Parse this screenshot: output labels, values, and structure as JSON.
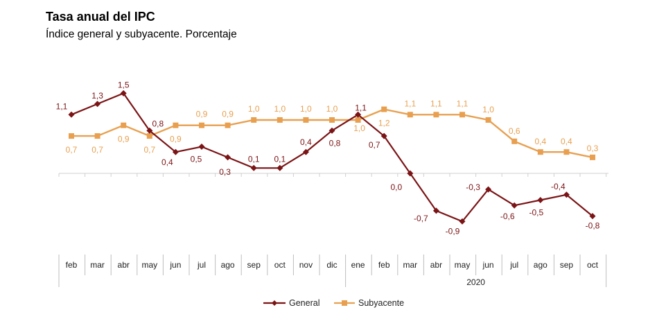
{
  "chart_data": {
    "type": "line",
    "title": "Tasa anual del IPC",
    "subtitle": "Índice general y subyacente. Porcentaje",
    "categories": [
      "feb",
      "mar",
      "abr",
      "may",
      "jun",
      "jul",
      "ago",
      "sep",
      "oct",
      "nov",
      "dic",
      "ene",
      "feb",
      "mar",
      "abr",
      "may",
      "jun",
      "jul",
      "ago",
      "sep",
      "oct"
    ],
    "year_label": "2020",
    "series": [
      {
        "name": "General",
        "color": "#7b1416",
        "values": [
          1.1,
          1.3,
          1.5,
          0.8,
          0.4,
          0.5,
          0.3,
          0.1,
          0.1,
          0.4,
          0.8,
          1.1,
          0.7,
          0.0,
          -0.7,
          -0.9,
          -0.3,
          -0.6,
          -0.5,
          -0.4,
          -0.8
        ],
        "labels": [
          "1,1",
          "1,3",
          "1,5",
          "0,8",
          "0,4",
          "0,5",
          "0,3",
          "0,1",
          "0,1",
          "0,4",
          "0,8",
          "1,1",
          "0,7",
          "0,0",
          "-0,7",
          "-0,9",
          "-0,3",
          "-0,6",
          "-0,5",
          "-0,4",
          "-0,8"
        ]
      },
      {
        "name": "Subyacente",
        "color": "#e8a050",
        "values": [
          0.7,
          0.7,
          0.9,
          0.7,
          0.9,
          0.9,
          0.9,
          1.0,
          1.0,
          1.0,
          1.0,
          1.0,
          1.2,
          1.1,
          1.1,
          1.1,
          1.0,
          0.6,
          0.4,
          0.4,
          0.3
        ],
        "labels": [
          "0,7",
          "0,7",
          "0,9",
          "0,7",
          "0,9",
          "0,9",
          "0,9",
          "1,0",
          "1,0",
          "1,0",
          "1,0",
          "1,0",
          "1,2",
          "1,1",
          "1,1",
          "1,1",
          "1,0",
          "0,6",
          "0,4",
          "0,4",
          "0,3"
        ]
      }
    ],
    "ylim": [
      -1.2,
      1.8
    ],
    "grid": false,
    "legend": "bottom-center"
  }
}
